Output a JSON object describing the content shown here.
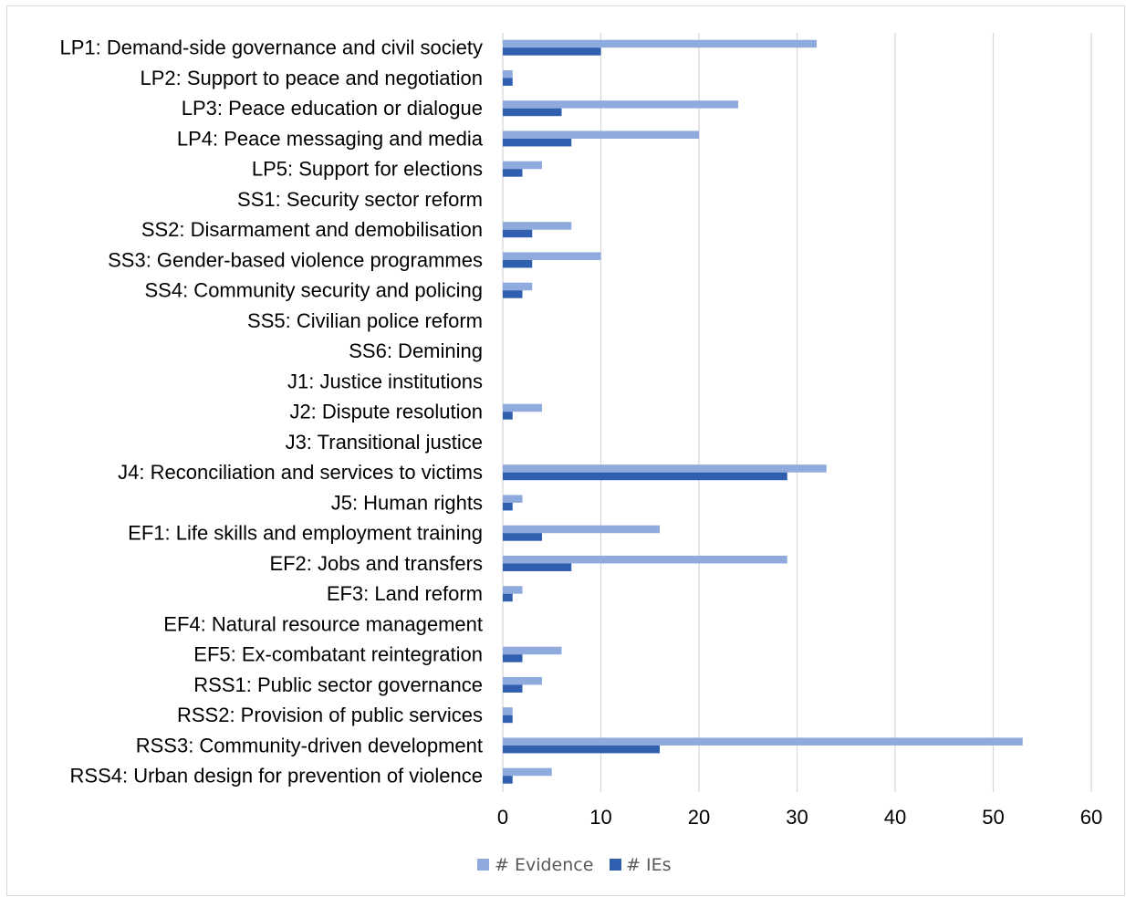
{
  "chart_data": {
    "type": "bar",
    "orientation": "horizontal",
    "title": "",
    "xlabel": "",
    "ylabel": "",
    "xlim": [
      0,
      60
    ],
    "x_ticks": [
      0,
      10,
      20,
      30,
      40,
      50,
      60
    ],
    "grid": "vertical",
    "legend_position": "bottom",
    "categories": [
      "LP1: Demand-side governance and civil society",
      "LP2: Support to peace and negotiation",
      "LP3: Peace education or dialogue",
      "LP4: Peace messaging and media",
      "LP5: Support for elections",
      "SS1: Security sector reform",
      "SS2: Disarmament and demobilisation",
      "SS3: Gender-based violence programmes",
      "SS4: Community security and policing",
      "SS5: Civilian police reform",
      "SS6: Demining",
      "J1: Justice institutions",
      "J2: Dispute resolution",
      "J3: Transitional justice",
      "J4: Reconciliation and services to victims",
      "J5: Human rights",
      "EF1: Life skills and employment training",
      "EF2: Jobs and transfers",
      "EF3: Land reform",
      "EF4: Natural resource management",
      "EF5: Ex-combatant reintegration",
      "RSS1: Public sector governance",
      "RSS2: Provision of public services",
      "RSS3: Community-driven development",
      "RSS4: Urban design for prevention of violence"
    ],
    "series": [
      {
        "name": "# Evidence",
        "color": "#8faadc",
        "values": [
          32,
          1,
          24,
          20,
          4,
          0,
          7,
          10,
          3,
          0,
          0,
          0,
          4,
          0,
          33,
          2,
          16,
          29,
          2,
          0,
          6,
          4,
          1,
          53,
          5
        ]
      },
      {
        "name": "# IEs",
        "color": "#2f5fae",
        "values": [
          10,
          1,
          6,
          7,
          2,
          0,
          3,
          3,
          2,
          0,
          0,
          0,
          1,
          0,
          29,
          1,
          4,
          7,
          1,
          0,
          2,
          2,
          1,
          16,
          1
        ]
      }
    ]
  }
}
